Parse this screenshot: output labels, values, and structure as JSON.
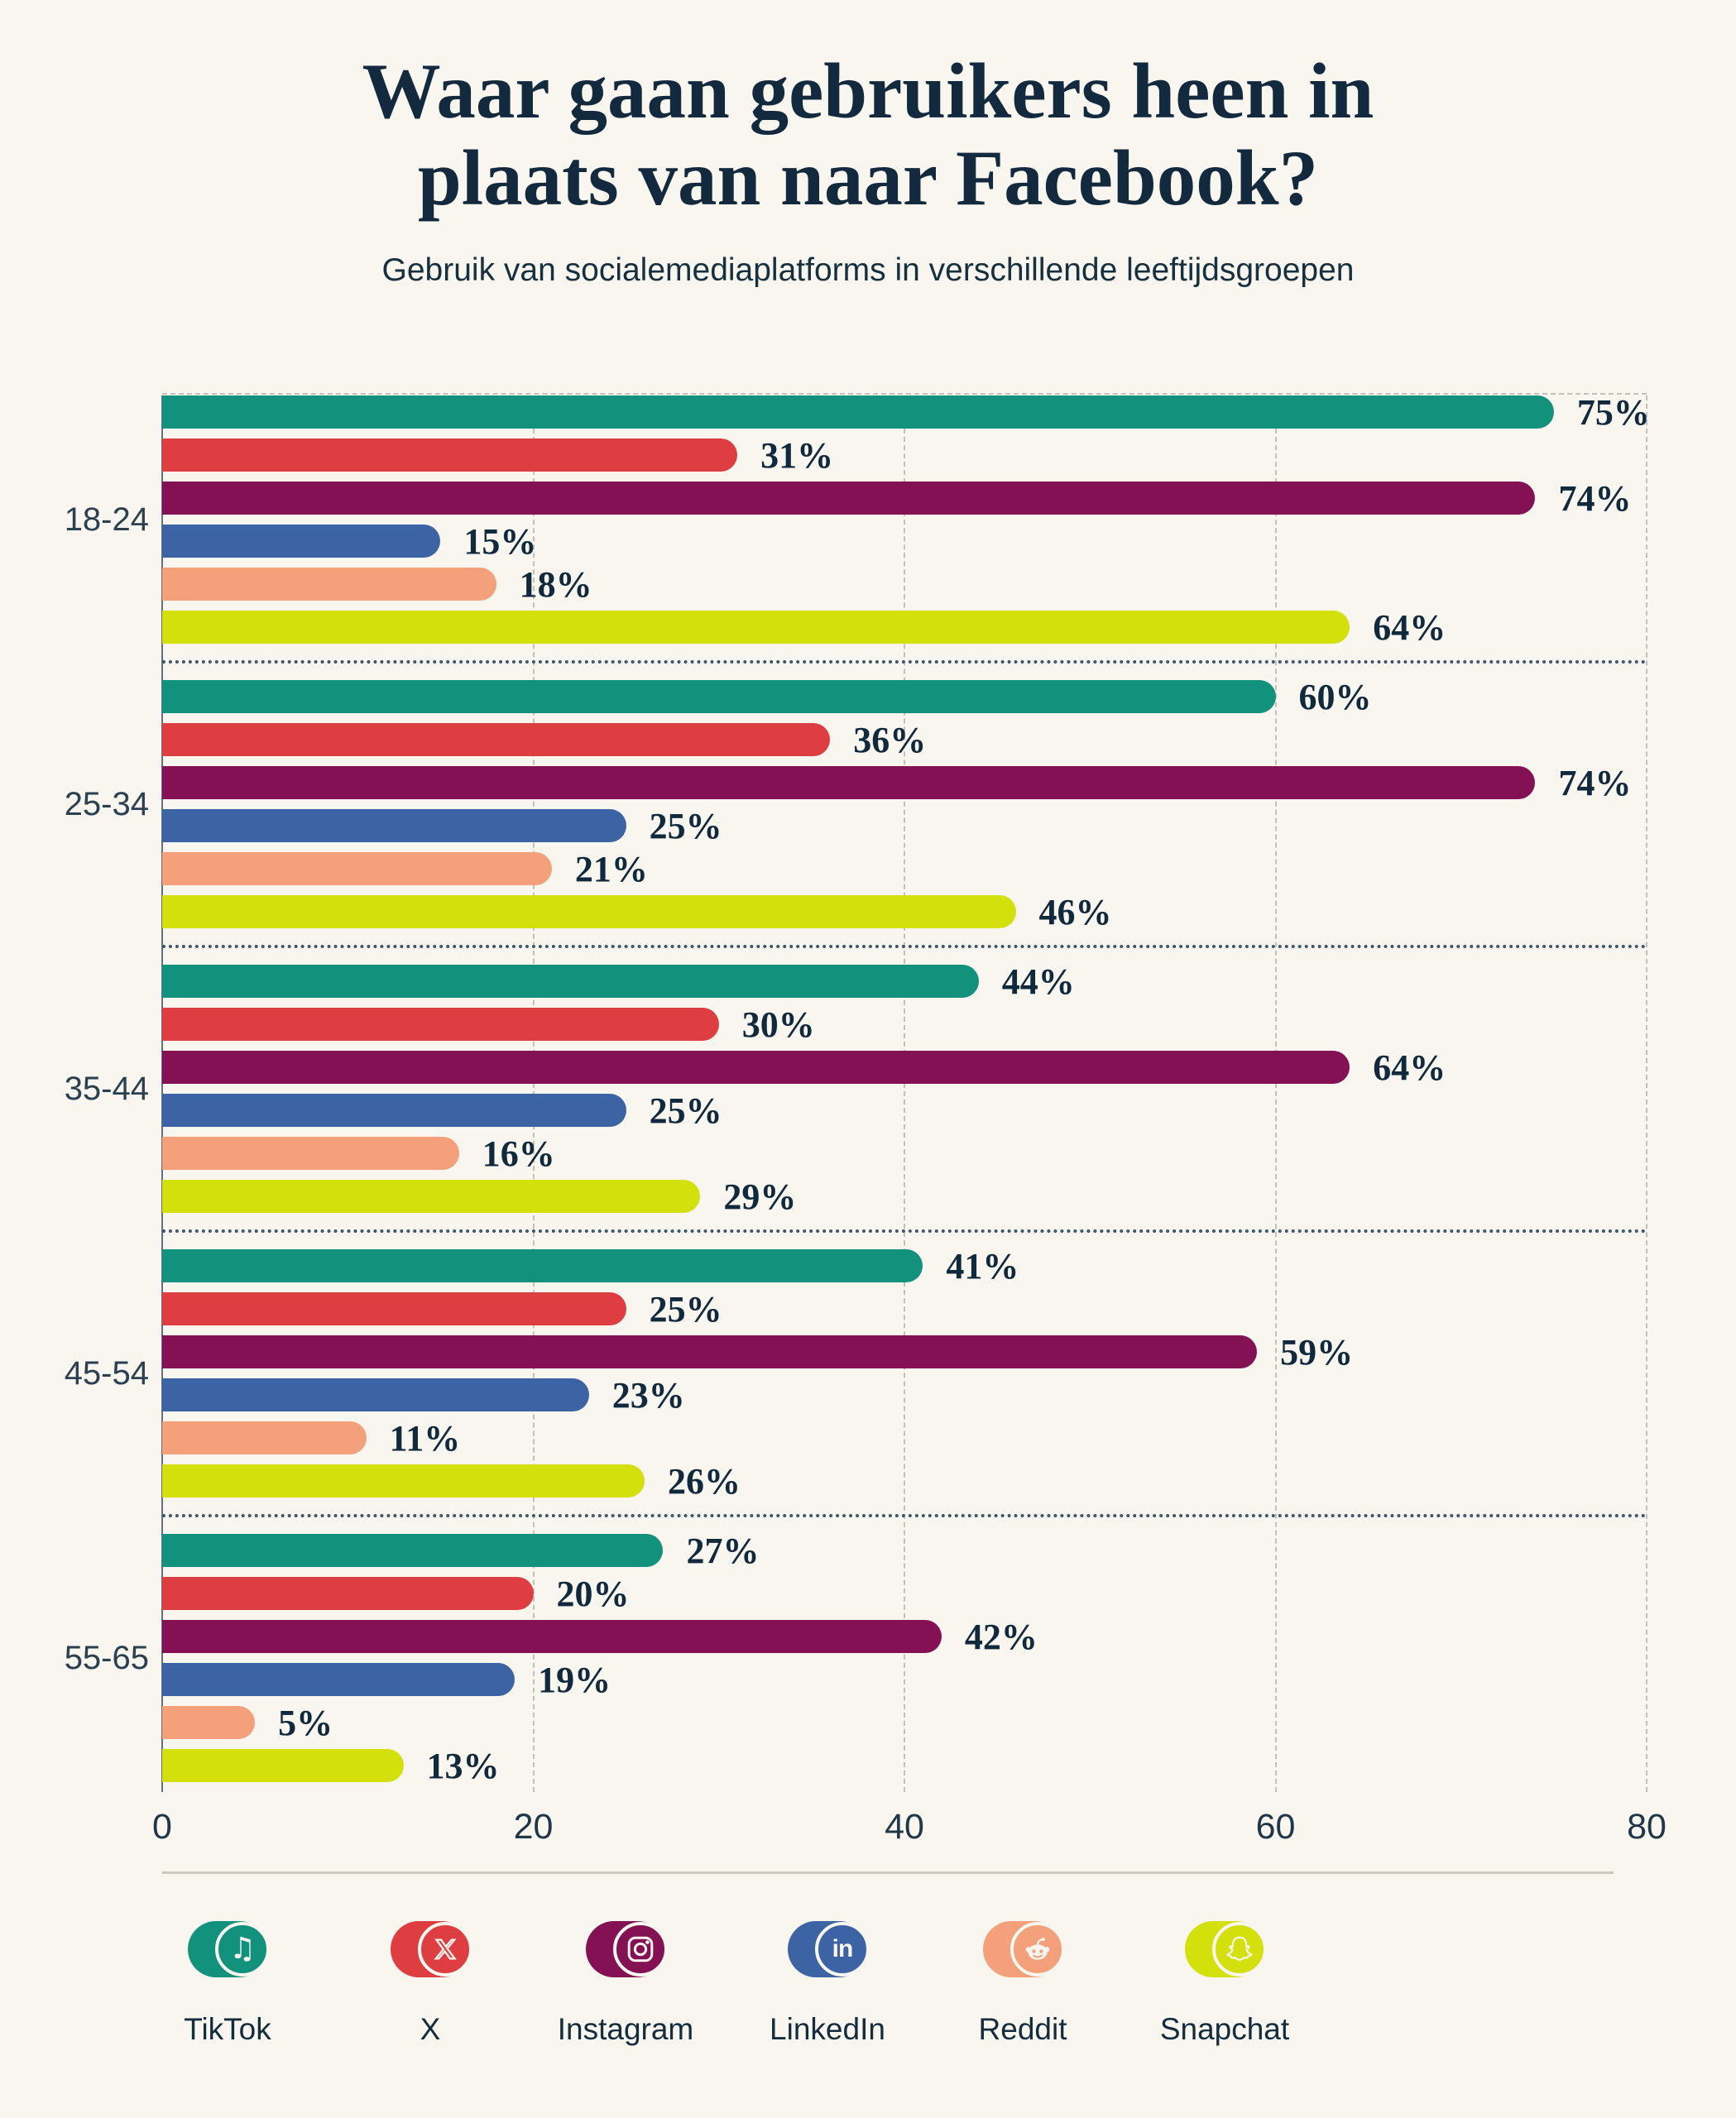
{
  "page": {
    "background": "#f8f6ee",
    "text_navy": "#132a3e",
    "gridline_color": "#c3c1b6",
    "separator_color": "#41556a",
    "axis_line_color": "#5f7080",
    "divider_color": "#cbc9be"
  },
  "header": {
    "title_line1": "Waar gaan gebruikers heen in",
    "title_line2": "plaats van naar Facebook?",
    "subtitle": "Gebruik van socialemediaplatforms in verschillende leeftijdsgroepen"
  },
  "chart_data": {
    "type": "bar",
    "orientation": "horizontal",
    "title": "Waar gaan gebruikers heen in plaats van naar Facebook?",
    "subtitle": "Gebruik van socialemediaplatforms in verschillende leeftijdsgroepen",
    "categories": [
      "18-24",
      "25-34",
      "35-44",
      "45-54",
      "55-65"
    ],
    "series": [
      {
        "name": "TikTok",
        "color": "#12917c",
        "values": [
          75,
          60,
          44,
          41,
          27
        ]
      },
      {
        "name": "X",
        "color": "#de3e42",
        "values": [
          31,
          36,
          30,
          25,
          20
        ]
      },
      {
        "name": "Instagram",
        "color": "#841154",
        "values": [
          74,
          74,
          64,
          59,
          42
        ]
      },
      {
        "name": "LinkedIn",
        "color": "#3c63a4",
        "values": [
          15,
          25,
          25,
          23,
          19
        ]
      },
      {
        "name": "Reddit",
        "color": "#f4a17b",
        "values": [
          18,
          21,
          16,
          11,
          5
        ]
      },
      {
        "name": "Snapchat",
        "color": "#d4e00c",
        "values": [
          64,
          46,
          29,
          26,
          13
        ]
      }
    ],
    "value_suffix": "%",
    "xlim": [
      0,
      80
    ],
    "xticks": [
      0,
      20,
      40,
      60,
      80
    ],
    "grid": "vertical-dashed",
    "value_labels": "outside-end",
    "legend_position": "bottom"
  },
  "legend": {
    "items": [
      "TikTok",
      "X",
      "Instagram",
      "LinkedIn",
      "Reddit",
      "Snapchat"
    ]
  }
}
